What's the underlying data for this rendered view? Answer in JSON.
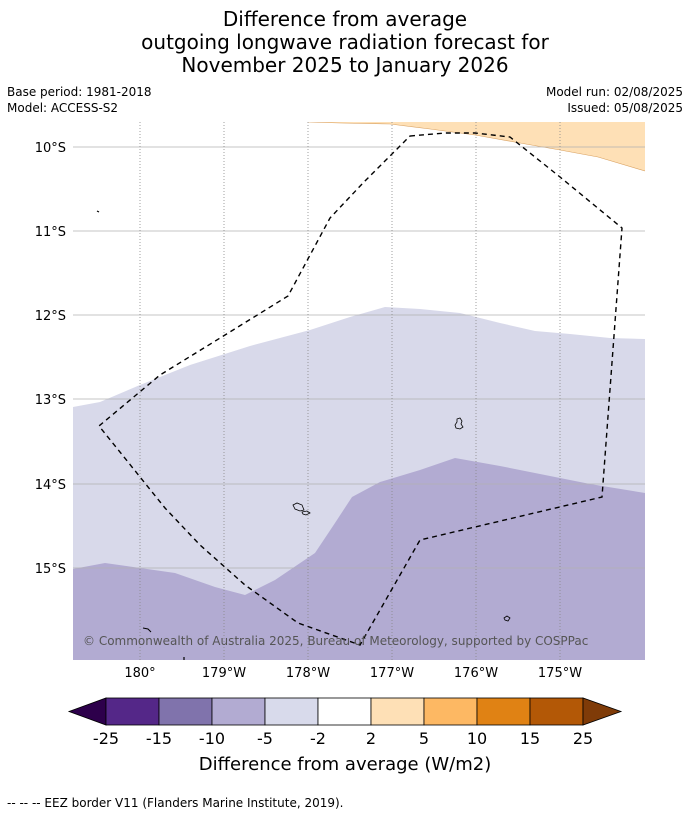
{
  "title": {
    "line1": "Difference from average",
    "line2": "outgoing longwave radiation forecast for",
    "line3": "November 2025 to January 2026"
  },
  "meta": {
    "base_period": "Base period: 1981-2018",
    "model": "Model: ACCESS-S2",
    "model_run": "Model run: 02/08/2025",
    "issued": "Issued: 05/08/2025"
  },
  "map": {
    "lat_labels": [
      "10°S",
      "11°S",
      "12°S",
      "13°S",
      "14°S",
      "15°S"
    ],
    "lon_labels": [
      "180°",
      "179°W",
      "178°W",
      "177°W",
      "176°W",
      "175°W"
    ],
    "copyright": "© Commonwealth of Australia 2025, Bureau of Meteorology, supported by COSPPac",
    "colors": {
      "orange_light": "#fee0b6",
      "lavender_pale": "#d8d9ea",
      "lavender_mid": "#b2abd2",
      "grid": "#b0b0b0"
    }
  },
  "colorbar": {
    "ticks": [
      "-25",
      "-15",
      "-10",
      "-5",
      "-2",
      "2",
      "5",
      "10",
      "15",
      "25"
    ],
    "colors": [
      "#2d004b",
      "#542788",
      "#8073ac",
      "#b2abd2",
      "#d8daeb",
      "#ffffff",
      "#fee0b6",
      "#fdb863",
      "#e08214",
      "#b35806",
      "#7f3b08"
    ],
    "label": "Difference from average (W/m2)"
  },
  "footnote": "-- -- -- EEZ border V11 (Flanders Marine Institute, 2019)."
}
